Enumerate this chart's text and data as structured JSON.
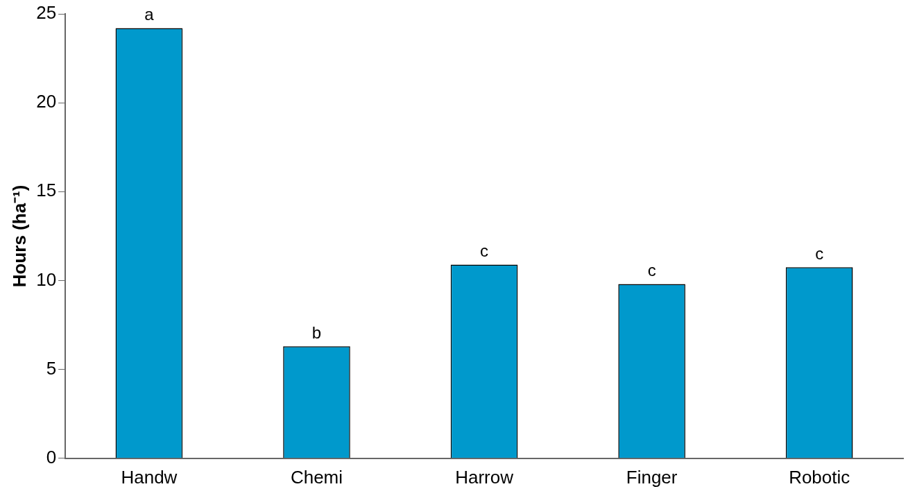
{
  "chart_data": {
    "type": "bar",
    "ylabel": "Hours (ha⁻¹)",
    "categories": [
      "Handw",
      "Chemi",
      "Harrow",
      "Finger",
      "Robotic"
    ],
    "values": [
      24.2,
      6.3,
      10.9,
      9.8,
      10.75
    ],
    "color": "#0099cc",
    "ylim": [
      0,
      25
    ],
    "yticks": [
      0,
      5,
      10,
      15,
      20,
      25
    ],
    "grid": false,
    "legend": false,
    "annotations": [
      {
        "text": "a",
        "x": "Handw",
        "y": 24.2
      },
      {
        "text": "b",
        "x": "Chemi",
        "y": 6.3
      },
      {
        "text": "c",
        "x": "Harrow",
        "y": 10.9
      },
      {
        "text": "c",
        "x": "Finger",
        "y": 9.8
      },
      {
        "text": "c",
        "x": "Robotic",
        "y": 10.75
      }
    ]
  }
}
